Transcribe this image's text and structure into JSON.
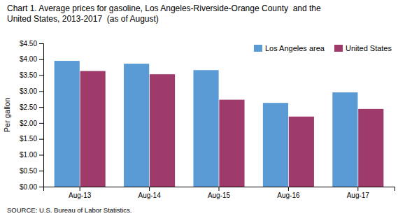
{
  "chart_data": {
    "type": "bar",
    "title": "Chart 1. Average prices for gasoline, Los Angeles-Riverside-Orange County  and the",
    "subtitle": "United States, 2013-2017  (as of August)",
    "ylabel": "Per gallon",
    "annotations": [
      "SOURCE: U.S. Bureau of Labor Statistics."
    ],
    "categories": [
      "Aug-13",
      "Aug-14",
      "Aug-15",
      "Aug-16",
      "Aug-17"
    ],
    "series": [
      {
        "name": "Los Angeles area",
        "color": "#5B9BD5",
        "values": [
          3.95,
          3.86,
          3.66,
          2.63,
          2.96
        ]
      },
      {
        "name": "United States",
        "color": "#9E3B6A",
        "values": [
          3.63,
          3.53,
          2.73,
          2.2,
          2.44
        ]
      }
    ],
    "ylim": [
      0,
      4.5
    ],
    "yticks": [
      {
        "value": 0.0,
        "label": "$0.00"
      },
      {
        "value": 0.5,
        "label": "$0.50"
      },
      {
        "value": 1.0,
        "label": "$1.00"
      },
      {
        "value": 1.5,
        "label": "$1.50"
      },
      {
        "value": 2.0,
        "label": "$2.00"
      },
      {
        "value": 2.5,
        "label": "$2.50"
      },
      {
        "value": 3.0,
        "label": "$3.00"
      },
      {
        "value": 3.5,
        "label": "$3.50"
      },
      {
        "value": 4.0,
        "label": "$4.00"
      },
      {
        "value": 4.5,
        "label": "$4.50"
      }
    ],
    "grid": false,
    "legend": "upper right"
  }
}
